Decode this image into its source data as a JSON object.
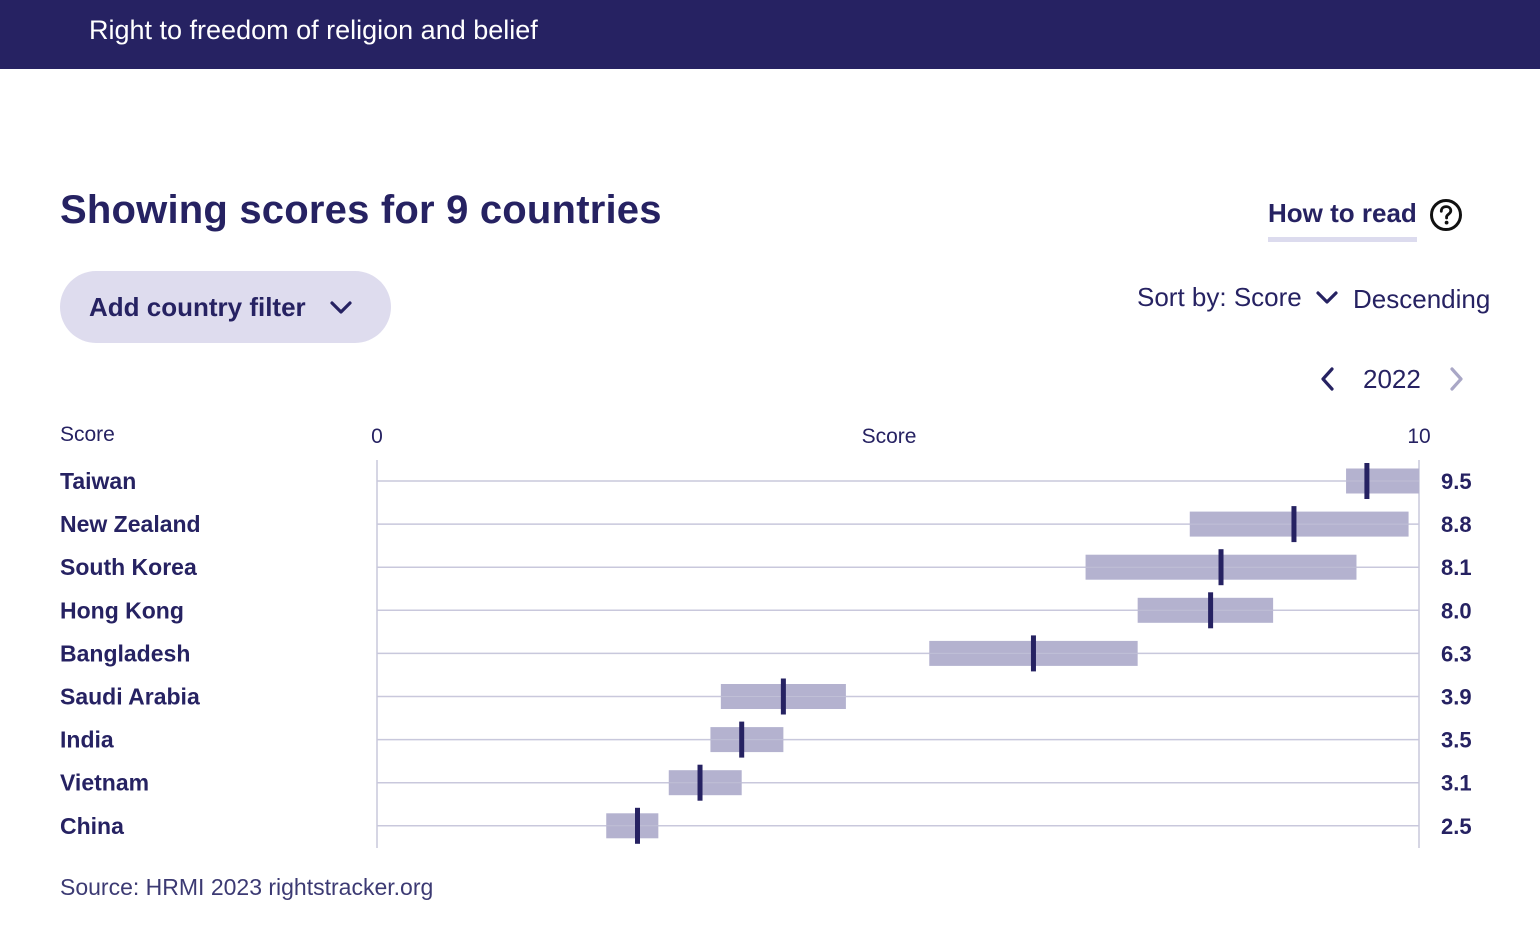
{
  "header": {
    "title": "Right to freedom of religion and belief"
  },
  "page": {
    "heading": "Showing scores for 9 countries",
    "how_to_read": "How to read",
    "filter_label": "Add country filter",
    "sort_label": "Sort by: Score",
    "sort_direction": "Descending",
    "year": "2022",
    "source": "Source: HRMI 2023 rightstracker.org"
  },
  "icons": {
    "help": "question-circle-icon",
    "filter_chevron": "chevron-down-icon",
    "sort_chevron": "chevron-down-icon",
    "prev": "chevron-left-icon",
    "next": "chevron-right-icon"
  },
  "colors": {
    "navy": "#262262",
    "band": "#b4b2cf",
    "pill": "#dedcee",
    "grid": "#c9c8dc",
    "disabled": "#a9a7c6"
  },
  "chart_data": {
    "type": "range-dot",
    "row_header": "Score",
    "xlabel": "Score",
    "xlim": [
      0,
      10
    ],
    "x_ticks": [
      "0",
      "10"
    ],
    "rows": [
      {
        "country": "Taiwan",
        "score": 9.5,
        "range": [
          9.3,
          10.0
        ],
        "score_label": "9.5"
      },
      {
        "country": "New Zealand",
        "score": 8.8,
        "range": [
          7.8,
          9.9
        ],
        "score_label": "8.8"
      },
      {
        "country": "South Korea",
        "score": 8.1,
        "range": [
          6.8,
          9.4
        ],
        "score_label": "8.1"
      },
      {
        "country": "Hong Kong",
        "score": 8.0,
        "range": [
          7.3,
          8.6
        ],
        "score_label": "8.0"
      },
      {
        "country": "Bangladesh",
        "score": 6.3,
        "range": [
          5.3,
          7.3
        ],
        "score_label": "6.3"
      },
      {
        "country": "Saudi Arabia",
        "score": 3.9,
        "range": [
          3.3,
          4.5
        ],
        "score_label": "3.9"
      },
      {
        "country": "India",
        "score": 3.5,
        "range": [
          3.2,
          3.9
        ],
        "score_label": "3.5"
      },
      {
        "country": "Vietnam",
        "score": 3.1,
        "range": [
          2.8,
          3.5
        ],
        "score_label": "3.1"
      },
      {
        "country": "China",
        "score": 2.5,
        "range": [
          2.2,
          2.7
        ],
        "score_label": "2.5"
      }
    ]
  }
}
